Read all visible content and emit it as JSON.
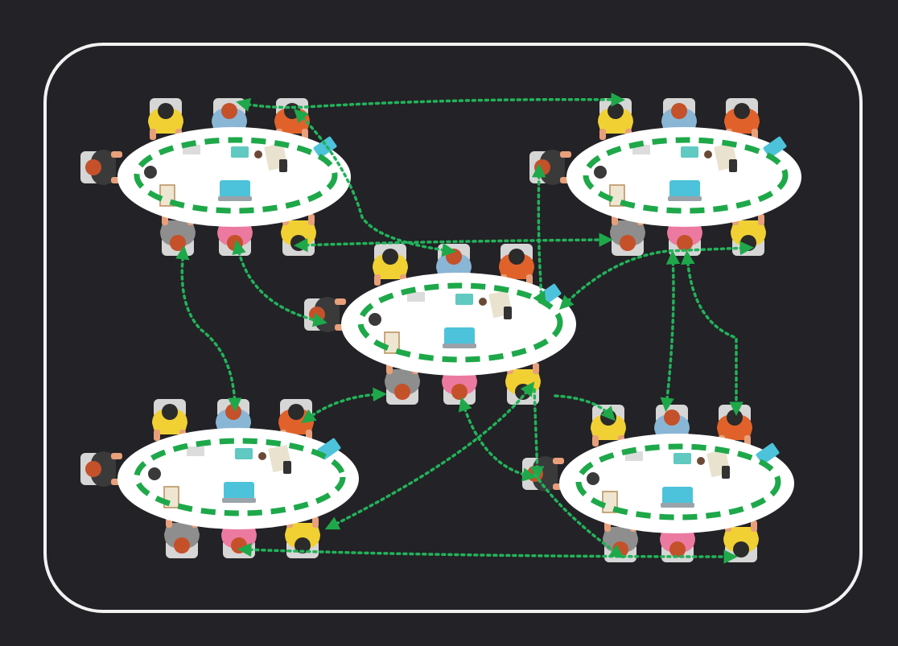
{
  "diagram": {
    "kind": "network-of-teams",
    "colors": {
      "background": "#232226",
      "frame": "#f2f2f2",
      "table": "#ffffff",
      "chair": "#d6d6d6",
      "internal_link": "#1ea84a",
      "external_link": "#22b25a",
      "skin": "#e8a07a",
      "hair_dark": "#2b2b2b",
      "hair_red": "#c4512a",
      "shirt_yellow": "#f1d033",
      "shirt_blue": "#8ab6d6",
      "shirt_orange": "#e0622a",
      "shirt_pink": "#ec7aa0",
      "shirt_gray": "#8e8e8e",
      "shirt_dark": "#3a3a3a",
      "laptop": "#4cc3da"
    },
    "tables": [
      {
        "id": "table-top-left",
        "people": 8
      },
      {
        "id": "table-top-right",
        "people": 8
      },
      {
        "id": "table-center",
        "people": 8
      },
      {
        "id": "table-bottom-left",
        "people": 8
      },
      {
        "id": "table-bottom-right",
        "people": 8
      }
    ],
    "connections": [
      {
        "id": "link-tl-tr",
        "from": "table-top-left",
        "to": "table-top-right"
      },
      {
        "id": "link-tl-center-a",
        "from": "table-top-left",
        "to": "table-center"
      },
      {
        "id": "link-tl-center-b",
        "from": "table-top-left",
        "to": "table-center"
      },
      {
        "id": "link-tl-bl",
        "from": "table-top-left",
        "to": "table-bottom-left"
      },
      {
        "id": "link-tr-center-a",
        "from": "table-top-right",
        "to": "table-center"
      },
      {
        "id": "link-tr-center-b",
        "from": "table-top-right",
        "to": "table-center"
      },
      {
        "id": "link-tr-br-a",
        "from": "table-top-right",
        "to": "table-bottom-right"
      },
      {
        "id": "link-tr-br-b",
        "from": "table-top-right",
        "to": "table-bottom-right"
      },
      {
        "id": "link-center-bl-a",
        "from": "table-center",
        "to": "table-bottom-left"
      },
      {
        "id": "link-center-bl-b",
        "from": "table-center",
        "to": "table-bottom-left"
      },
      {
        "id": "link-center-br-a",
        "from": "table-center",
        "to": "table-bottom-right"
      },
      {
        "id": "link-center-br-b",
        "from": "table-center",
        "to": "table-bottom-right"
      },
      {
        "id": "link-bl-br",
        "from": "table-bottom-left",
        "to": "table-bottom-right"
      }
    ]
  }
}
